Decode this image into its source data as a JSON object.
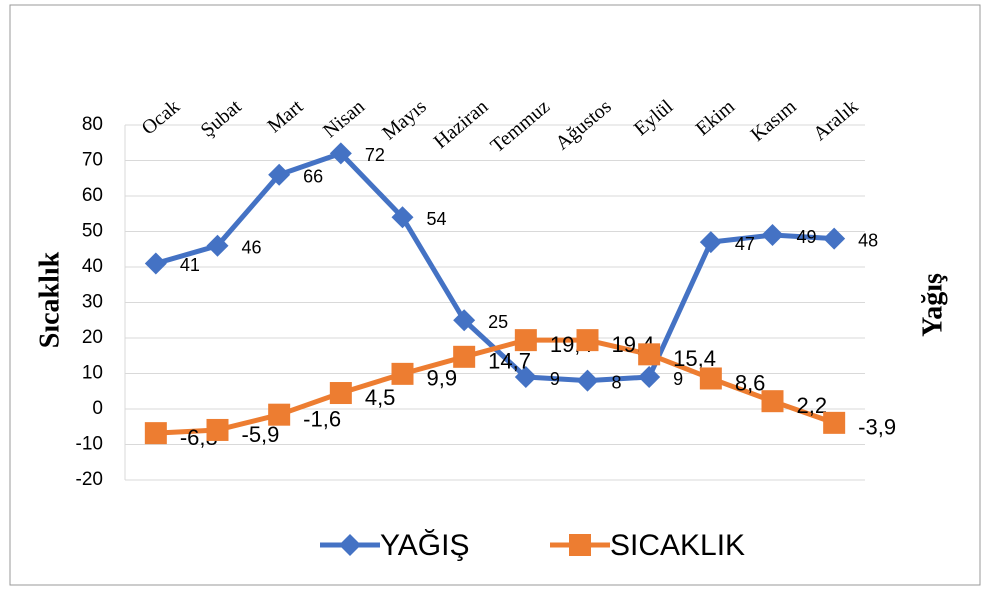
{
  "chart_data": {
    "type": "line",
    "categories": [
      "Ocak",
      "Şubat",
      "Mart",
      "Nisan",
      "Mayıs",
      "Haziran",
      "Temmuz",
      "Ağustos",
      "Eylül",
      "Ekim",
      "Kasım",
      "Aralık"
    ],
    "series": [
      {
        "name": "YAĞIŞ",
        "color": "#4472c4",
        "marker": "diamond",
        "values": [
          41,
          46,
          66,
          72,
          54,
          25,
          9,
          8,
          9,
          47,
          49,
          48
        ]
      },
      {
        "name": "SICAKLIK",
        "color": "#ed7d31",
        "marker": "square",
        "values": [
          -6.8,
          -5.9,
          -1.6,
          4.5,
          9.9,
          14.7,
          19.4,
          19.4,
          15.4,
          8.6,
          2.2,
          -3.9
        ],
        "value_labels": [
          "-6,8",
          "-5,9",
          "-1,6",
          "4,5",
          "9,9",
          "14,7",
          "19,4",
          "19,4",
          "15,4",
          "8,6",
          "2,2",
          "-3,9"
        ]
      }
    ],
    "y_label": "Sıcaklık",
    "y2_label": "Yağış",
    "ylim": [
      -20,
      80
    ],
    "yticks": [
      -20,
      -10,
      0,
      10,
      20,
      30,
      40,
      50,
      60,
      70,
      80
    ],
    "grid": true,
    "legend": "bottom"
  }
}
